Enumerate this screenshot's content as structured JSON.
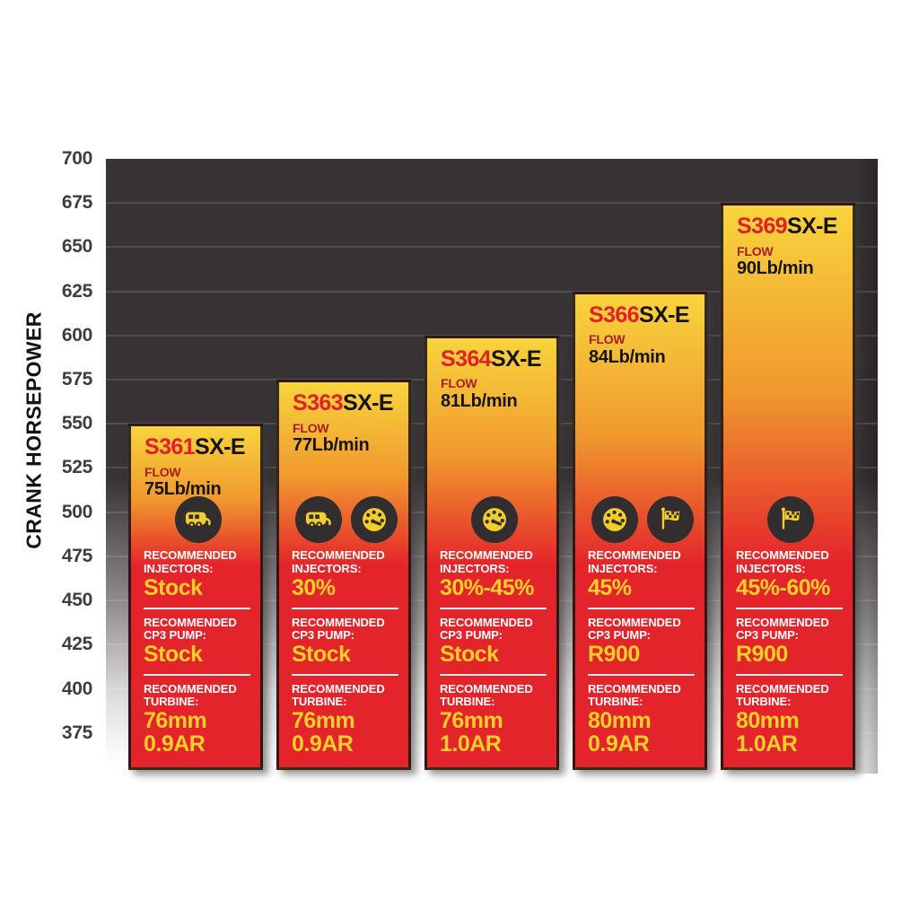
{
  "chart_data": {
    "type": "bar",
    "title": "",
    "xlabel": "",
    "ylabel": "CRANK HORSEPOWER",
    "yticks": [
      700,
      675,
      650,
      625,
      600,
      575,
      550,
      525,
      500,
      475,
      450,
      425,
      400,
      375
    ],
    "ylim": [
      352,
      700
    ],
    "grid": true,
    "legend": false,
    "categories": [
      "S361SX-E",
      "S363SX-E",
      "S364SX-E",
      "S366SX-E",
      "S369SX-E"
    ],
    "values": [
      550,
      575,
      600,
      625,
      675
    ],
    "labels": {
      "flow": "FLOW",
      "injectors": "RECOMMENDED INJECTORS:",
      "pump": "RECOMMENDED CP3 PUMP:",
      "turbine": "RECOMMENDED TURBINE:"
    },
    "bars": [
      {
        "model": "S361SX-E",
        "model_prefix": "S361",
        "model_suffix": "SX-E",
        "crank_hp": 550,
        "flow": "75Lb/min",
        "icons": [
          "rv"
        ],
        "injectors": "Stock",
        "pump": "Stock",
        "turbine": [
          "76mm",
          "0.9AR"
        ]
      },
      {
        "model": "S363SX-E",
        "model_prefix": "S363",
        "model_suffix": "SX-E",
        "crank_hp": 575,
        "flow": "77Lb/min",
        "icons": [
          "rv",
          "gauge"
        ],
        "injectors": "30%",
        "pump": "Stock",
        "turbine": [
          "76mm",
          "0.9AR"
        ]
      },
      {
        "model": "S364SX-E",
        "model_prefix": "S364",
        "model_suffix": "SX-E",
        "crank_hp": 600,
        "flow": "81Lb/min",
        "icons": [
          "gauge"
        ],
        "injectors": "30%-45%",
        "pump": "Stock",
        "turbine": [
          "76mm",
          "1.0AR"
        ]
      },
      {
        "model": "S366SX-E",
        "model_prefix": "S366",
        "model_suffix": "SX-E",
        "crank_hp": 625,
        "flow": "84Lb/min",
        "icons": [
          "gauge",
          "flag"
        ],
        "injectors": "45%",
        "pump": "R900",
        "turbine": [
          "80mm",
          "0.9AR"
        ]
      },
      {
        "model": "S369SX-E",
        "model_prefix": "S369",
        "model_suffix": "SX-E",
        "crank_hp": 675,
        "flow": "90Lb/min",
        "icons": [
          "flag"
        ],
        "injectors": "45%-60%",
        "pump": "R900",
        "turbine": [
          "80mm",
          "1.0AR"
        ]
      }
    ],
    "colors": {
      "plot_bg_dark": "#383435",
      "bar_yellow": "#f8d43d",
      "bar_orange": "#f0992e",
      "bar_red": "#e4242b",
      "model_prefix_red": "#e1202a",
      "model_suffix_black": "#161313",
      "flow_label_red": "#a81e1f",
      "text_white": "#ffffff",
      "value_yellow": "#f6cf2b",
      "icon_circle": "#322d2e",
      "icon_glyph": "#f2cd2c",
      "axis_text": "#403d3d"
    }
  }
}
